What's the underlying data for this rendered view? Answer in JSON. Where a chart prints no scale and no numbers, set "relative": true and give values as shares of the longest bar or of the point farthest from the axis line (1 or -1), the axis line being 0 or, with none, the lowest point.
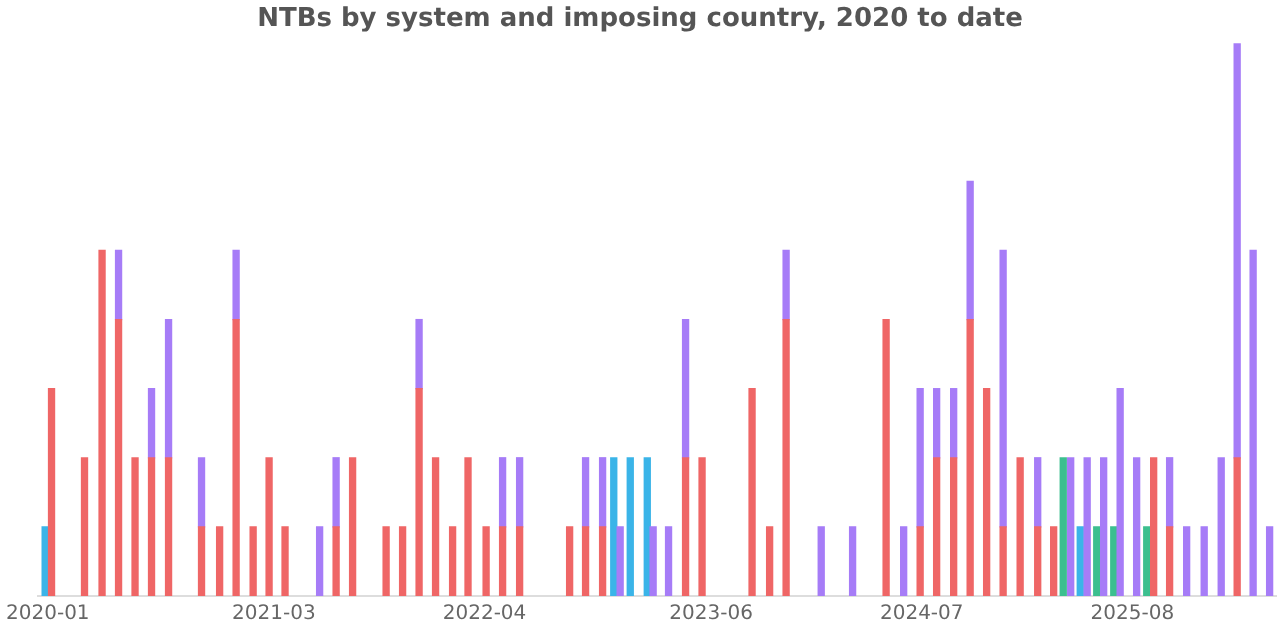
{
  "chart_data": {
    "type": "bar",
    "title": "NTBs by system and imposing country, 2020 to date",
    "relative": true,
    "stacked": true,
    "grid": false,
    "legend": false,
    "xlim": [
      "2019-12-13",
      "2026-04-28"
    ],
    "xticks": [
      "2020-01",
      "2021-03",
      "2022-04",
      "2023-06",
      "2024-07",
      "2025-08"
    ],
    "x": [
      "2019-12-27",
      "2020-01-08",
      "2020-03-10",
      "2020-04-12",
      "2020-05-13",
      "2020-06-13",
      "2020-07-14",
      "2020-08-15",
      "2020-10-16",
      "2020-11-19",
      "2020-12-20",
      "2021-01-21",
      "2021-02-20",
      "2021-03-22",
      "2021-05-26",
      "2021-06-26",
      "2021-07-27",
      "2021-09-28",
      "2021-10-29",
      "2021-11-29",
      "2021-12-30",
      "2022-01-31",
      "2022-03-01",
      "2022-04-04",
      "2022-05-05",
      "2022-06-06",
      "2022-09-08",
      "2022-10-08",
      "2022-11-09",
      "2022-11-30",
      "2022-12-12",
      "2022-12-31",
      "2023-02-01",
      "2023-02-12",
      "2023-03-13",
      "2023-04-14",
      "2023-05-15",
      "2023-08-17",
      "2023-09-19",
      "2023-10-20",
      "2023-12-25",
      "2024-02-22",
      "2024-04-25",
      "2024-05-28",
      "2024-06-28",
      "2024-07-29",
      "2024-08-30",
      "2024-09-30",
      "2024-10-31",
      "2024-12-01",
      "2025-01-02",
      "2025-02-04",
      "2025-03-06",
      "2025-03-24",
      "2025-04-07",
      "2025-04-25",
      "2025-05-08",
      "2025-05-26",
      "2025-06-08",
      "2025-06-27",
      "2025-07-09",
      "2025-08-09",
      "2025-08-28",
      "2025-09-10",
      "2025-10-10",
      "2025-11-11",
      "2025-12-14",
      "2026-01-15",
      "2026-02-14",
      "2026-03-16",
      "2026-04-16"
    ],
    "series": [
      {
        "color": "#ef6666",
        "values": [
          null,
          0.375,
          0.25,
          0.625,
          0.5,
          0.25,
          0.25,
          0.25,
          0.125,
          0.125,
          0.5,
          0.125,
          0.25,
          0.125,
          null,
          0.125,
          0.25,
          0.125,
          0.125,
          0.375,
          0.25,
          0.125,
          0.25,
          0.125,
          0.125,
          0.125,
          0.125,
          0.125,
          0.125,
          null,
          null,
          null,
          null,
          null,
          null,
          0.25,
          0.25,
          0.375,
          0.125,
          0.5,
          null,
          null,
          0.5,
          null,
          0.125,
          0.25,
          0.25,
          0.5,
          0.375,
          0.125,
          0.25,
          0.125,
          0.125,
          null,
          null,
          null,
          null,
          null,
          null,
          null,
          null,
          null,
          null,
          0.25,
          0.125,
          null,
          null,
          null,
          0.25,
          null,
          null
        ]
      },
      {
        "color": "#a67cf7",
        "values": [
          null,
          null,
          null,
          null,
          0.125,
          null,
          0.125,
          0.25,
          0.125,
          null,
          0.125,
          null,
          null,
          null,
          0.125,
          0.125,
          null,
          null,
          null,
          0.125,
          null,
          null,
          null,
          null,
          0.125,
          0.125,
          null,
          0.125,
          0.125,
          null,
          0.125,
          null,
          null,
          0.125,
          0.125,
          0.25,
          null,
          null,
          null,
          0.125,
          0.125,
          0.125,
          null,
          0.125,
          0.25,
          0.125,
          0.125,
          0.25,
          null,
          0.5,
          null,
          0.125,
          null,
          null,
          0.25,
          null,
          0.25,
          null,
          0.25,
          null,
          0.375,
          0.25,
          null,
          null,
          0.125,
          0.125,
          0.125,
          0.25,
          0.75,
          0.625,
          0.125
        ]
      },
      {
        "color": "#3ab4e8",
        "values": [
          0.125,
          null,
          null,
          null,
          null,
          null,
          null,
          null,
          null,
          null,
          null,
          null,
          null,
          null,
          null,
          null,
          null,
          null,
          null,
          null,
          null,
          null,
          null,
          null,
          null,
          null,
          null,
          null,
          null,
          0.25,
          null,
          0.25,
          0.25,
          null,
          null,
          null,
          null,
          null,
          null,
          null,
          null,
          null,
          null,
          null,
          null,
          null,
          null,
          null,
          null,
          null,
          null,
          null,
          null,
          null,
          null,
          0.125,
          null,
          null,
          null,
          null,
          null,
          null,
          null,
          null,
          null,
          null,
          null,
          null,
          null,
          null,
          null
        ]
      },
      {
        "color": "#3cbf8f",
        "values": [
          null,
          null,
          null,
          null,
          null,
          null,
          null,
          null,
          null,
          null,
          null,
          null,
          null,
          null,
          null,
          null,
          null,
          null,
          null,
          null,
          null,
          null,
          null,
          null,
          null,
          null,
          null,
          null,
          null,
          null,
          null,
          null,
          null,
          null,
          null,
          null,
          null,
          null,
          null,
          null,
          null,
          null,
          null,
          null,
          null,
          null,
          null,
          null,
          null,
          null,
          null,
          null,
          null,
          0.25,
          null,
          null,
          null,
          0.125,
          null,
          0.125,
          null,
          null,
          0.125,
          null,
          null,
          null,
          null,
          null,
          null,
          null,
          null
        ]
      }
    ]
  }
}
